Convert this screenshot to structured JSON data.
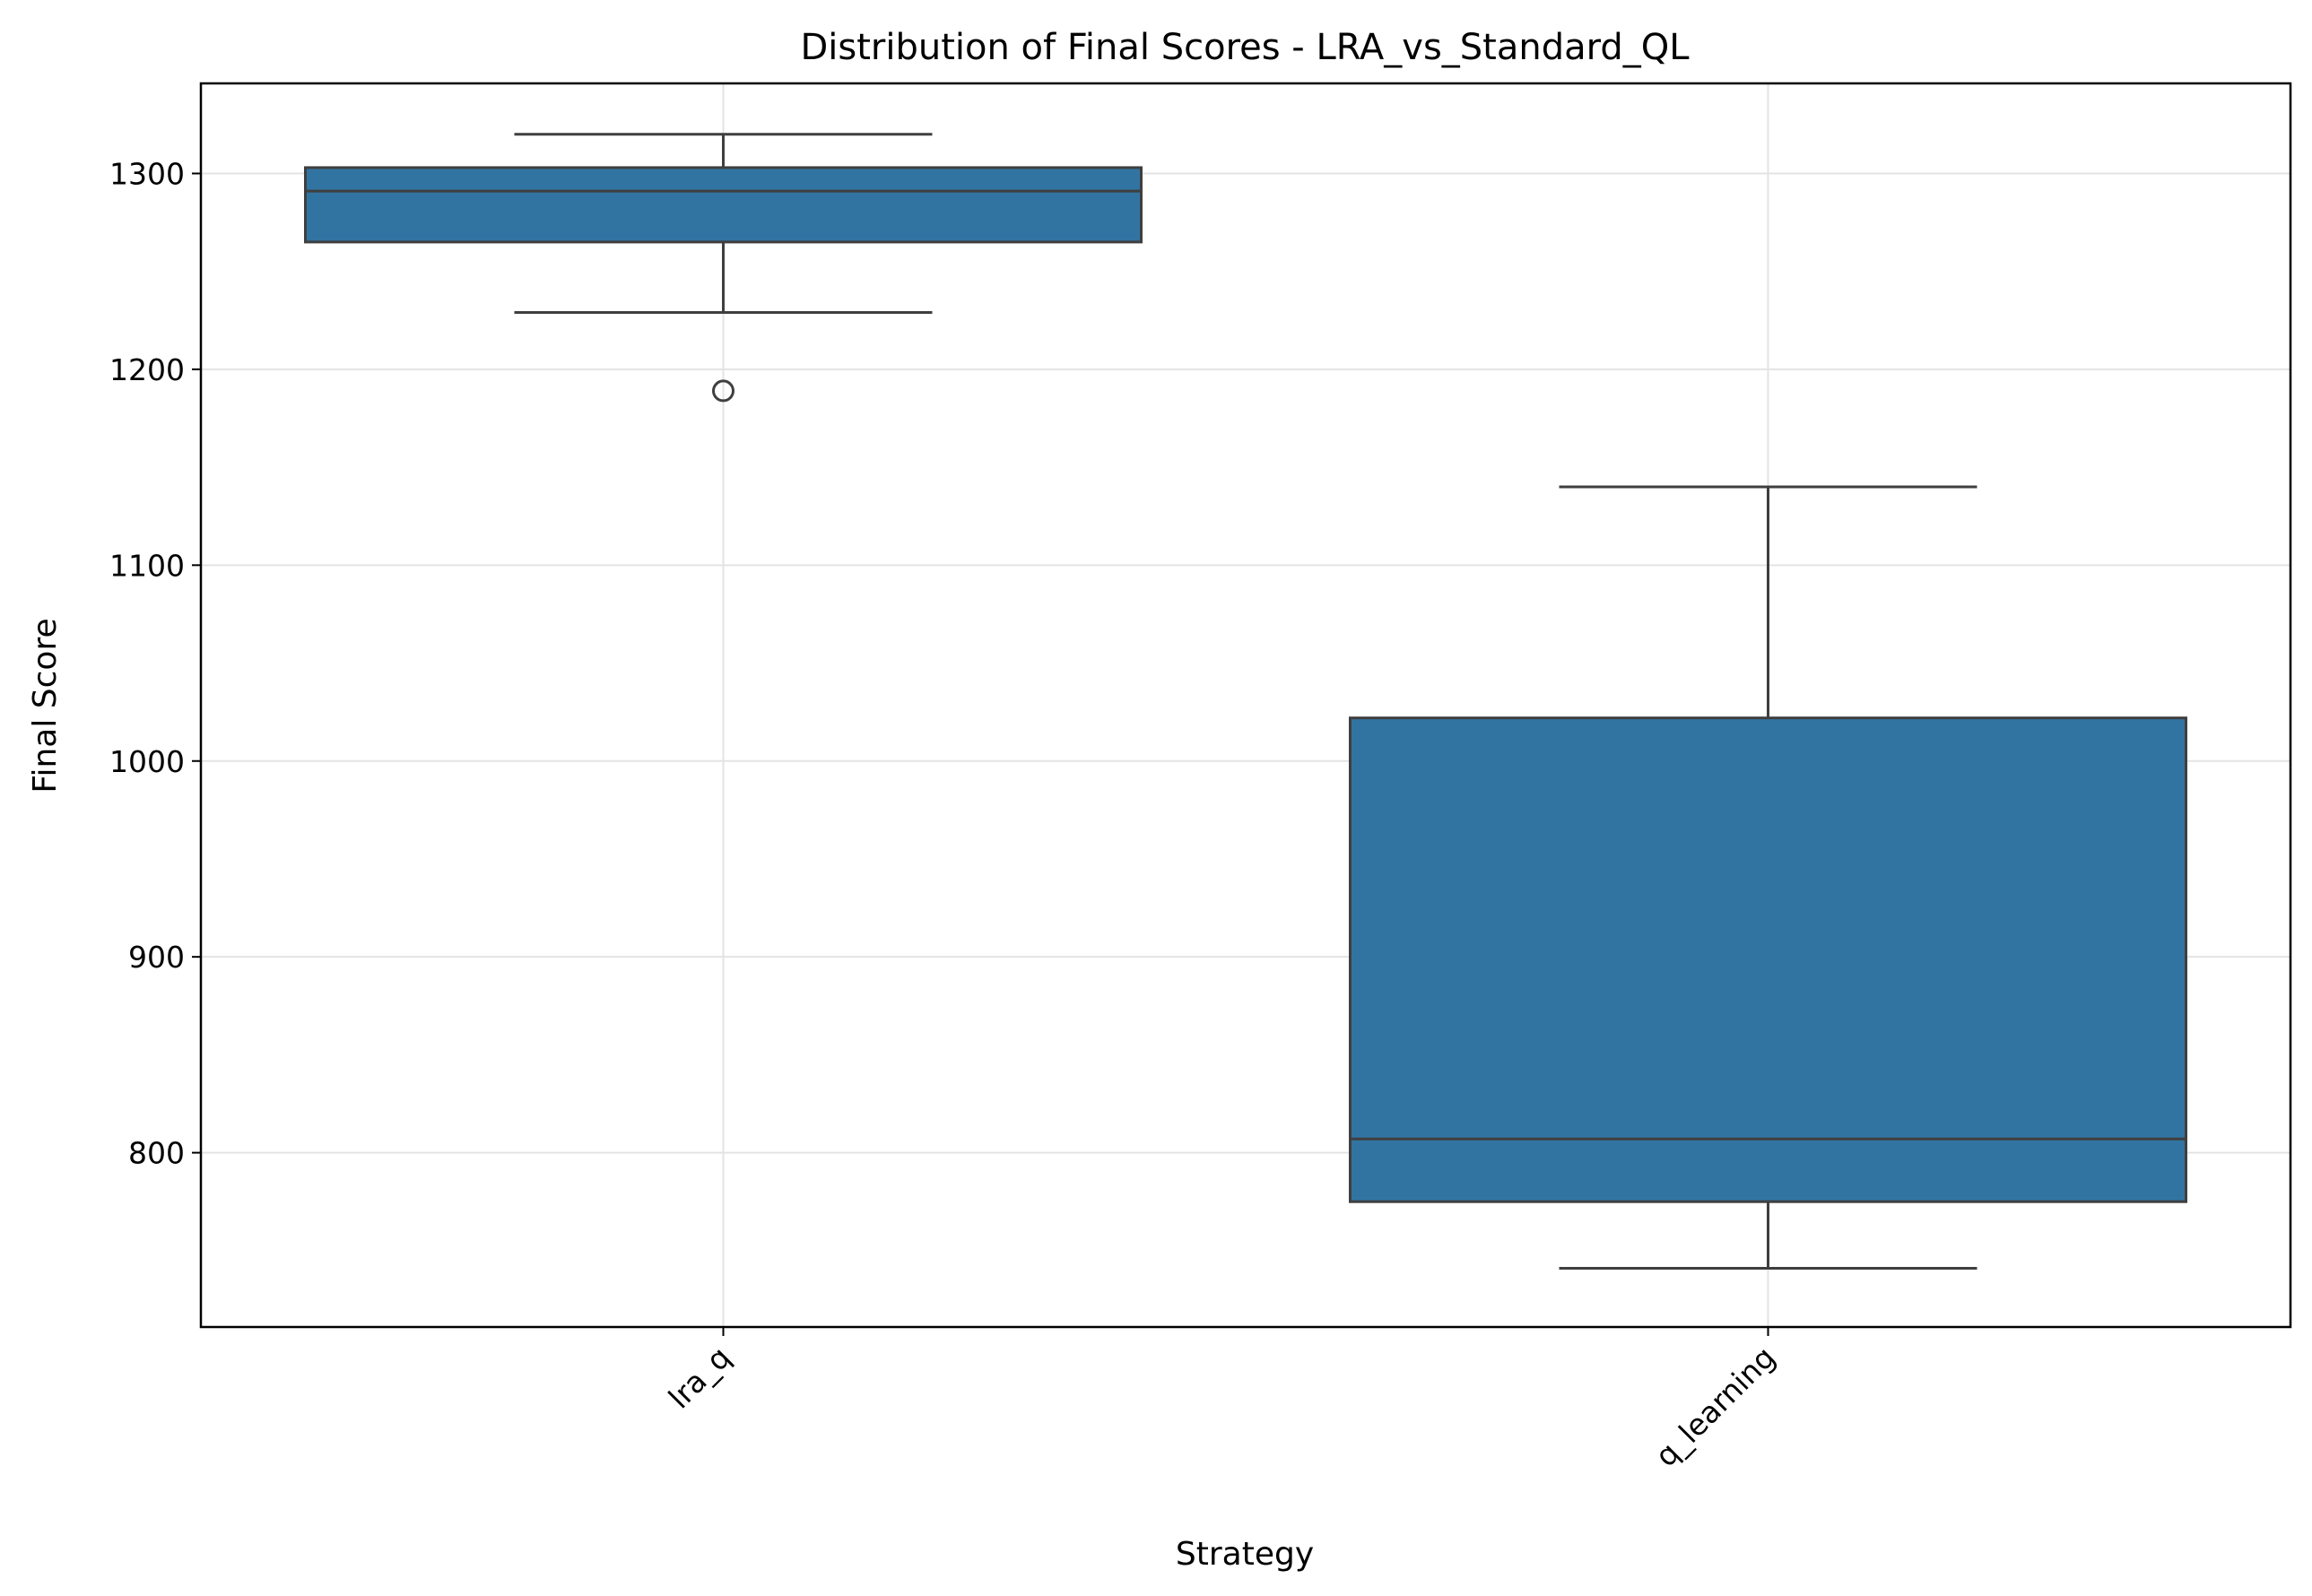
{
  "chart_data": {
    "type": "box",
    "title": "Distribution of Final Scores - LRA_vs_Standard_QL",
    "xlabel": "Strategy",
    "ylabel": "Final Score",
    "ylim": [
      711,
      1346
    ],
    "yticks": [
      800,
      900,
      1000,
      1100,
      1200,
      1300
    ],
    "grid": true,
    "box_color": "#3274a1",
    "categories": [
      "lra_q",
      "q_learning"
    ],
    "boxes": [
      {
        "category": "lra_q",
        "whisker_low": 1229,
        "q1": 1265,
        "median": 1291,
        "q3": 1303,
        "whisker_high": 1320,
        "outliers": [
          1189
        ]
      },
      {
        "category": "q_learning",
        "whisker_low": 741,
        "q1": 775,
        "median": 807,
        "q3": 1022,
        "whisker_high": 1140,
        "outliers": []
      }
    ]
  }
}
